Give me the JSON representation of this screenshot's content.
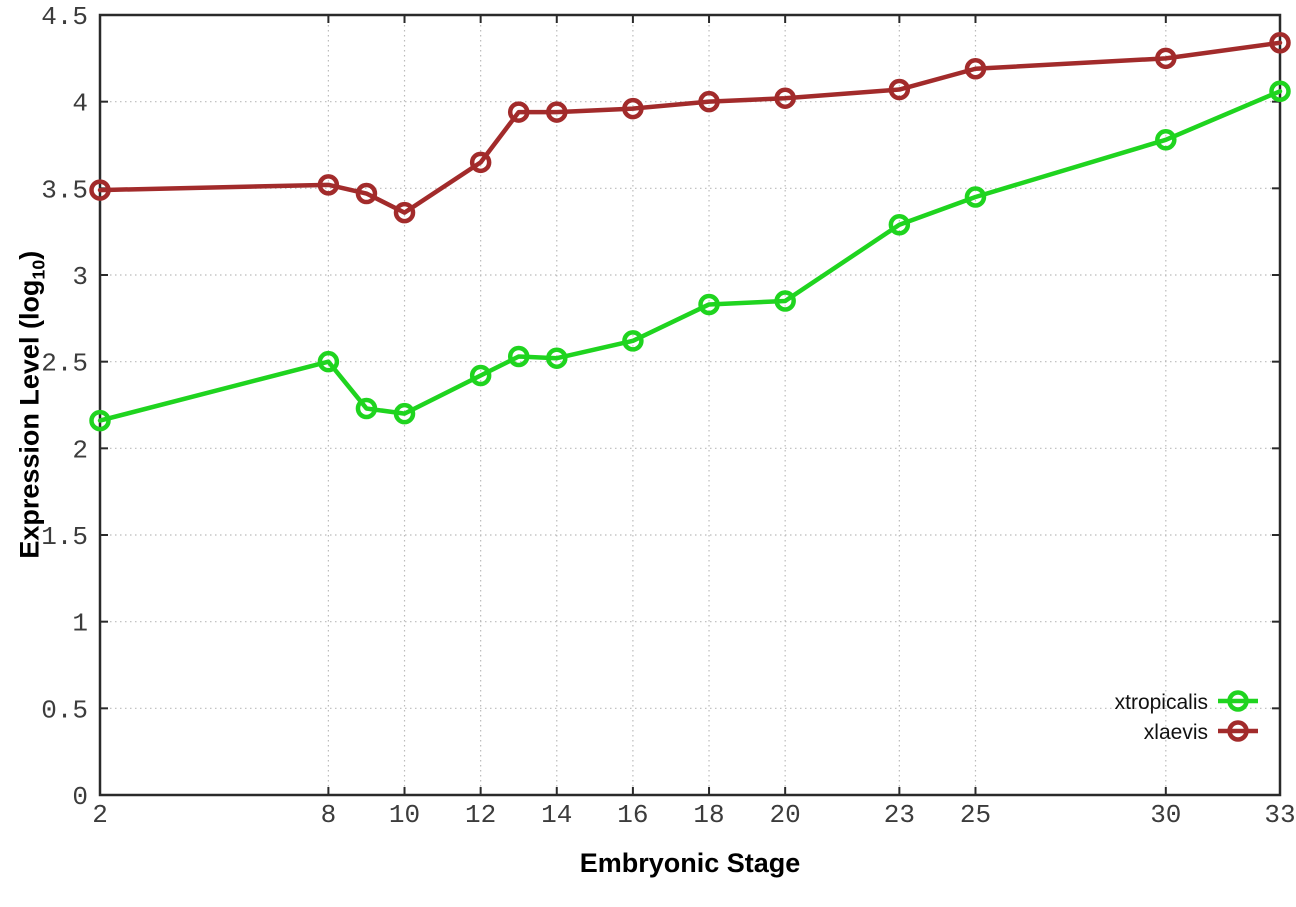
{
  "labels": {
    "xlabel": "Embryonic Stage",
    "ylabel_prefix": "Expression Level (log",
    "ylabel_sub": "10",
    "ylabel_suffix": ")"
  },
  "chart_data": {
    "type": "line",
    "title": "",
    "xlabel": "Embryonic Stage",
    "ylabel": "Expression Level (log10)",
    "x": [
      2,
      8,
      9,
      10,
      12,
      13,
      14,
      16,
      18,
      20,
      23,
      25,
      30,
      33
    ],
    "series": [
      {
        "name": "xtropicalis",
        "color": "#1fd41f",
        "values": [
          2.16,
          2.5,
          2.23,
          2.2,
          2.42,
          2.53,
          2.52,
          2.62,
          2.83,
          2.85,
          3.29,
          3.45,
          3.78,
          4.06
        ]
      },
      {
        "name": "xlaevis",
        "color": "#a22b2b",
        "values": [
          3.49,
          3.52,
          3.47,
          3.36,
          3.65,
          3.94,
          3.94,
          3.96,
          4.0,
          4.02,
          4.07,
          4.19,
          4.25,
          4.34
        ]
      }
    ],
    "xlim": [
      2,
      33
    ],
    "ylim": [
      0,
      4.5
    ],
    "xticks": [
      2,
      8,
      10,
      12,
      14,
      16,
      18,
      20,
      23,
      25,
      30,
      33
    ],
    "xtick_labels": [
      "2",
      "8",
      "10",
      "12",
      "14",
      "16",
      "18",
      "20",
      "23",
      "25",
      "30",
      "33"
    ],
    "yticks": [
      0,
      0.5,
      1,
      1.5,
      2,
      2.5,
      3,
      3.5,
      4,
      4.5
    ],
    "ytick_labels": [
      "0",
      "0.5",
      "1",
      "1.5",
      "2",
      "2.5",
      "3",
      "3.5",
      "4",
      "4.5"
    ],
    "grid": true,
    "legend_position": "inside-bottom-right",
    "marker": "open-circle"
  },
  "colors": {
    "background": "#ffffff",
    "axis_border": "#2a2a2a",
    "grid": "#bbbbbb",
    "tick_text": "#3c3c3c"
  }
}
